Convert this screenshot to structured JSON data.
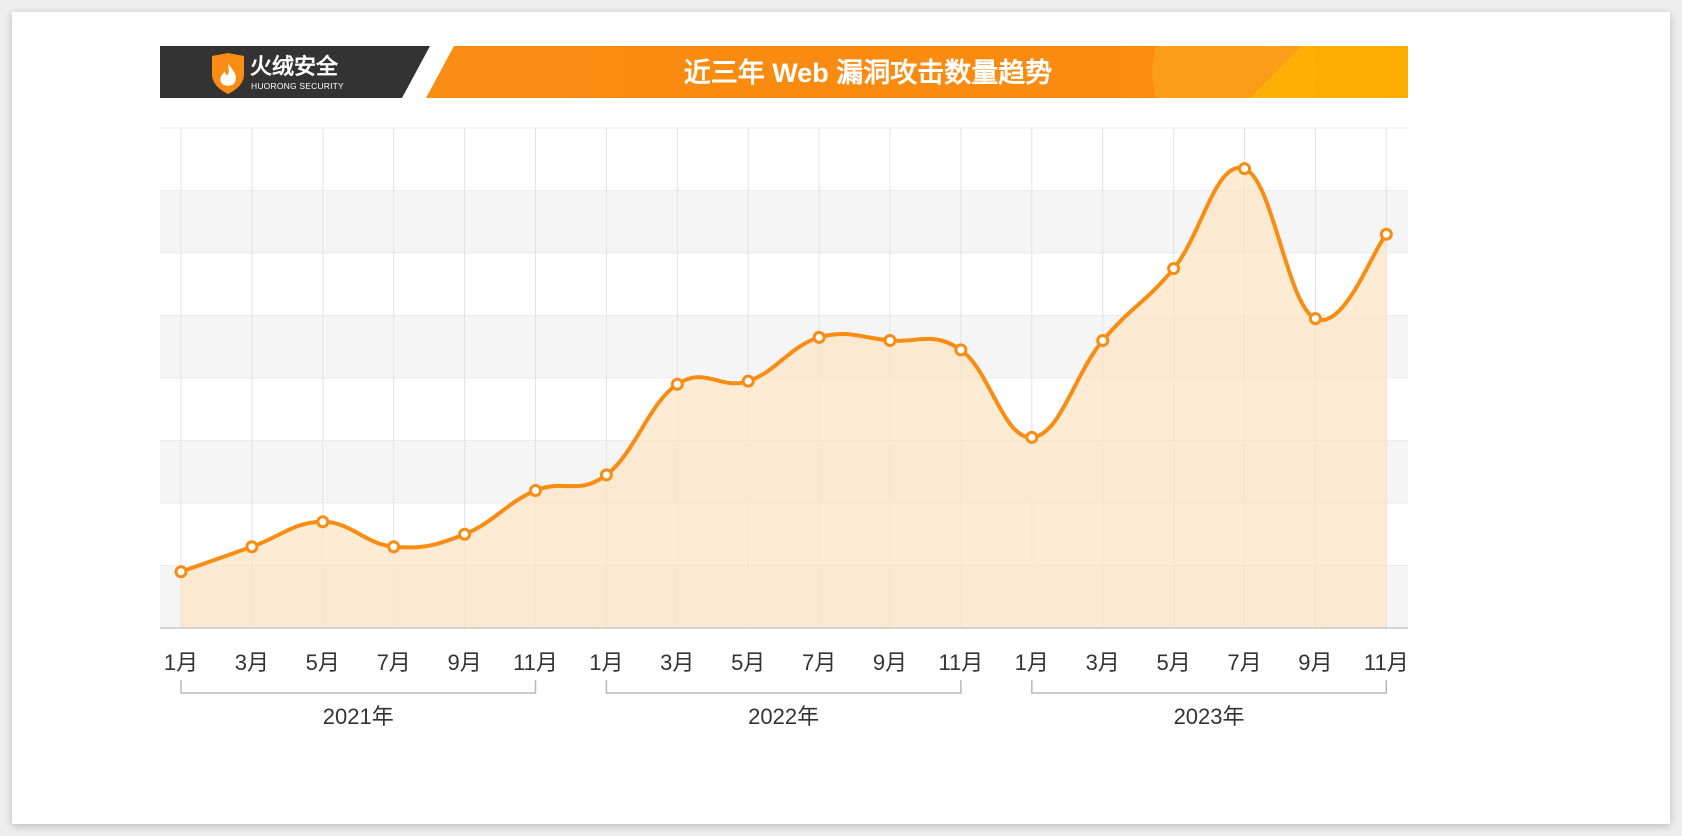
{
  "brand": {
    "name_cn": "火绒安全",
    "name_en": "HUORONG SECURITY"
  },
  "colors": {
    "accent": "#f98c12",
    "accent_light": "#fdb300",
    "header_dark": "#333333",
    "area_fill": "#fde4c4",
    "band": "#f5f5f5",
    "grid": "#e3e3e3"
  },
  "chart_data": {
    "type": "area",
    "title": "近三年 Web 漏洞攻击数量趋势",
    "x_tick_labels": [
      "1月",
      "3月",
      "5月",
      "7月",
      "9月",
      "11月",
      "1月",
      "3月",
      "5月",
      "7月",
      "9月",
      "11月",
      "1月",
      "3月",
      "5月",
      "7月",
      "9月",
      "11月"
    ],
    "year_groups": [
      {
        "label": "2021年",
        "from_index": 0,
        "to_index": 5
      },
      {
        "label": "2022年",
        "from_index": 6,
        "to_index": 11
      },
      {
        "label": "2023年",
        "from_index": 12,
        "to_index": 17
      }
    ],
    "series": [
      {
        "values": [
          0.9,
          1.3,
          1.7,
          1.3,
          1.5,
          2.2,
          2.45,
          3.9,
          3.95,
          4.65,
          4.6,
          4.45,
          3.05,
          4.6,
          5.75,
          7.35,
          4.95,
          6.3
        ]
      }
    ],
    "ylim": [
      0,
      8
    ],
    "y_axis_labels_shown": false,
    "grid": true,
    "legend": "none"
  }
}
